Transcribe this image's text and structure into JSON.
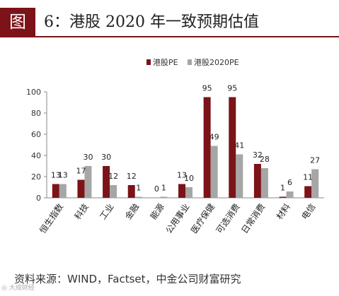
{
  "figure": {
    "number_label": "图",
    "title": "6：港股 2020 年一致预期估值",
    "source": "资料来源：WIND，Factset，中金公司财富研究",
    "watermark": "◎ 大成财经"
  },
  "colors": {
    "series_pe": "#7b1318",
    "series_pe2020": "#a6a6a6",
    "title_accent": "#7b1318"
  },
  "chart_data": {
    "type": "bar",
    "categories": [
      "恒生指数",
      "科技",
      "工业",
      "金融",
      "能源",
      "公用事业",
      "医疗保健",
      "可选消费",
      "日常消费",
      "材料",
      "电信"
    ],
    "series": [
      {
        "name": "港股PE",
        "values": [
          13,
          17,
          30,
          12,
          0,
          13,
          95,
          95,
          32,
          1,
          11
        ]
      },
      {
        "name": "港股2020PE",
        "values": [
          13,
          30,
          12,
          1,
          1,
          10,
          49,
          41,
          28,
          6,
          27
        ]
      }
    ],
    "ylim": [
      0,
      100
    ],
    "yticks": [
      0,
      20,
      40,
      60,
      80,
      100
    ],
    "legend_position": "top",
    "grid": false
  }
}
